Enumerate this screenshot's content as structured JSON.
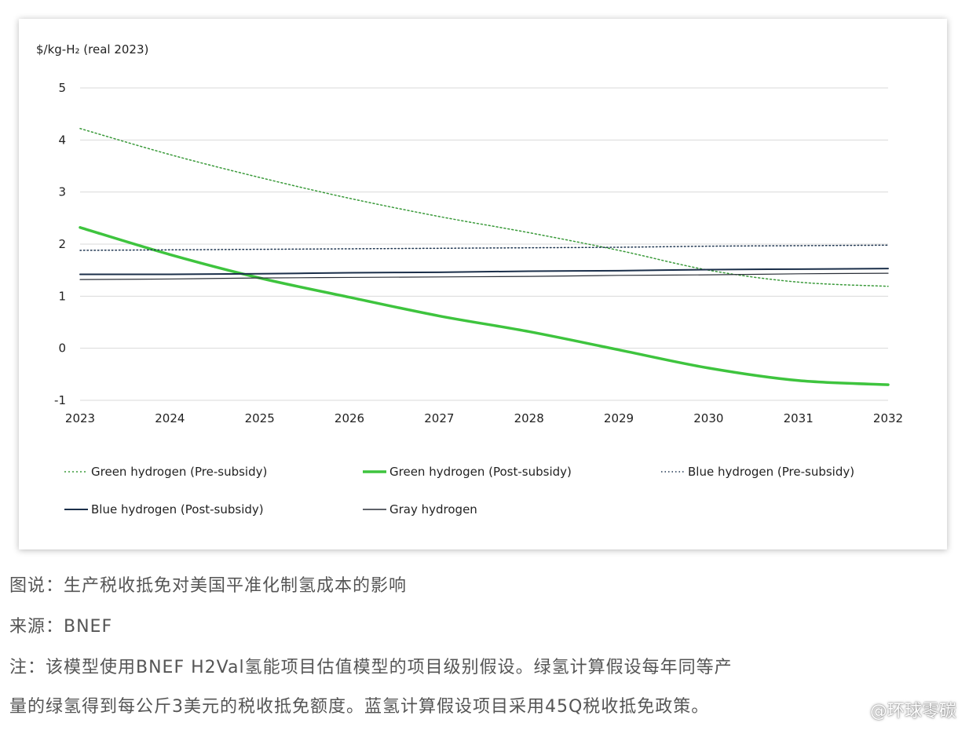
{
  "chart_data": {
    "type": "line",
    "ylabel": "$/kg-H₂ (real 2023)",
    "x": [
      "2023",
      "2024",
      "2025",
      "2026",
      "2027",
      "2028",
      "2029",
      "2030",
      "2031",
      "2032"
    ],
    "ylim": [
      -1,
      5
    ],
    "yticks": [
      "5",
      "4",
      "3",
      "2",
      "1",
      "0",
      "-1"
    ],
    "grid": true,
    "legend_placement": "bottom",
    "series": [
      {
        "name": "Green hydrogen (Pre-subsidy)",
        "values": [
          4.22,
          3.72,
          3.28,
          2.88,
          2.53,
          2.22,
          1.88,
          1.5,
          1.27,
          1.19
        ],
        "style": "dotted",
        "color": "#3a9a3a",
        "width": 1.5
      },
      {
        "name": "Green hydrogen (Post-subsidy)",
        "values": [
          2.32,
          1.8,
          1.35,
          0.98,
          0.62,
          0.32,
          -0.03,
          -0.38,
          -0.62,
          -0.7
        ],
        "style": "solid",
        "color": "#3ec43e",
        "width": 3.5
      },
      {
        "name": "Blue hydrogen (Pre-subsidy)",
        "values": [
          1.88,
          1.89,
          1.9,
          1.91,
          1.92,
          1.93,
          1.94,
          1.96,
          1.97,
          1.98
        ],
        "style": "dotted",
        "color": "#1e3550",
        "width": 1.5
      },
      {
        "name": "Blue hydrogen (Post-subsidy)",
        "values": [
          1.42,
          1.42,
          1.43,
          1.45,
          1.46,
          1.48,
          1.49,
          1.51,
          1.52,
          1.53
        ],
        "style": "solid",
        "color": "#1b2f4a",
        "width": 2
      },
      {
        "name": "Gray hydrogen",
        "values": [
          1.32,
          1.33,
          1.35,
          1.36,
          1.37,
          1.38,
          1.4,
          1.41,
          1.43,
          1.44
        ],
        "style": "solid",
        "color": "#2a2f38",
        "width": 1.2
      }
    ]
  },
  "captions": {
    "figure": "图说：生产税收抵免对美国平准化制氢成本的影响",
    "source": "来源：BNEF",
    "note_line1": "注：该模型使用BNEF H2Val氢能项目估值模型的项目级别假设。绿氢计算假设每年同等产",
    "note_line2": "量的绿氢得到每公斤3美元的税收抵免额度。蓝氢计算假设项目采用45Q税收抵免政策。"
  },
  "watermark": "@环球零碳"
}
